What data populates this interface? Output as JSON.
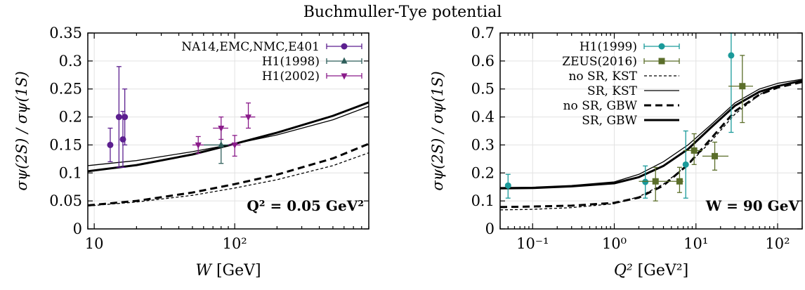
{
  "figure_title": "Buchmuller-Tye potential",
  "chart_data": [
    {
      "type": "line",
      "x_scale": "log",
      "xlim": [
        9,
        900
      ],
      "ylim": [
        0,
        0.35
      ],
      "xlabel_var": "W",
      "xlabel_unit": "[GeV]",
      "ylabel": "σψ(2S) / σψ(1S)",
      "x_ticks": [
        10,
        100
      ],
      "x_tick_labels": [
        "10",
        "10²"
      ],
      "y_ticks": [
        0,
        0.05,
        0.1,
        0.15,
        0.2,
        0.25,
        0.3,
        0.35
      ],
      "y_tick_labels": [
        "0",
        "0.05",
        "0.1",
        "0.15",
        "0.2",
        "0.25",
        "0.3",
        "0.35"
      ],
      "grid": true,
      "legend_position": "top-right",
      "annotation": "Q² = 0.05 GeV²",
      "series": [
        {
          "name": "NA14,EMC,NMC,E401",
          "kind": "points",
          "marker": "circle",
          "color": "#5c1f8f",
          "points": [
            {
              "x": 13,
              "y": 0.15,
              "yerr_lo": 0.12,
              "yerr_hi": 0.18
            },
            {
              "x": 15,
              "y": 0.2,
              "yerr_lo": 0.11,
              "yerr_hi": 0.29
            },
            {
              "x": 16,
              "y": 0.16,
              "yerr_lo": 0.11,
              "yerr_hi": 0.21
            },
            {
              "x": 16.5,
              "y": 0.2,
              "yerr_lo": 0.15,
              "yerr_hi": 0.25
            }
          ]
        },
        {
          "name": "H1(1998)",
          "kind": "points",
          "marker": "triangle-up",
          "color": "#2e5e5a",
          "points": [
            {
              "x": 80,
              "y": 0.15,
              "yerr_lo": 0.117,
              "yerr_hi": 0.183,
              "xerr_lo": 60,
              "xerr_hi": 100
            }
          ]
        },
        {
          "name": "H1(2002)",
          "kind": "points",
          "marker": "triangle-down",
          "color": "#8a1b8a",
          "points": [
            {
              "x": 55,
              "y": 0.15,
              "yerr_lo": 0.135,
              "yerr_hi": 0.165,
              "xerr_lo": 50,
              "xerr_hi": 60
            },
            {
              "x": 80,
              "y": 0.18,
              "yerr_lo": 0.16,
              "yerr_hi": 0.2,
              "xerr_lo": 70,
              "xerr_hi": 90
            },
            {
              "x": 100,
              "y": 0.15,
              "yerr_lo": 0.13,
              "yerr_hi": 0.167,
              "xerr_lo": 90,
              "xerr_hi": 110
            },
            {
              "x": 125,
              "y": 0.2,
              "yerr_lo": 0.18,
              "yerr_hi": 0.225,
              "xerr_lo": 110,
              "xerr_hi": 140
            }
          ]
        },
        {
          "kind": "line",
          "style": "thin-solid",
          "x": [
            9,
            20,
            50,
            100,
            200,
            500,
            900
          ],
          "y": [
            0.113,
            0.122,
            0.138,
            0.152,
            0.168,
            0.195,
            0.219
          ]
        },
        {
          "kind": "line",
          "style": "thick-solid",
          "x": [
            9,
            20,
            50,
            100,
            200,
            500,
            900
          ],
          "y": [
            0.103,
            0.114,
            0.133,
            0.152,
            0.172,
            0.202,
            0.226
          ]
        },
        {
          "kind": "line",
          "style": "thin-dashed",
          "x": [
            9,
            20,
            50,
            100,
            200,
            500,
            900
          ],
          "y": [
            0.041,
            0.048,
            0.06,
            0.073,
            0.088,
            0.113,
            0.136
          ]
        },
        {
          "kind": "line",
          "style": "thick-dashed",
          "x": [
            9,
            20,
            50,
            100,
            200,
            500,
            900
          ],
          "y": [
            0.042,
            0.05,
            0.065,
            0.08,
            0.097,
            0.126,
            0.152
          ]
        }
      ]
    },
    {
      "type": "line",
      "x_scale": "log",
      "xlim": [
        0.04,
        200
      ],
      "ylim": [
        0,
        0.7
      ],
      "xlabel_var": "Q²",
      "xlabel_unit": "[GeV²]",
      "ylabel": "σψ(2S) / σψ(1S)",
      "x_ticks": [
        0.1,
        1,
        10,
        100
      ],
      "x_tick_labels": [
        "10⁻¹",
        "10⁰",
        "10¹",
        "10²"
      ],
      "y_ticks": [
        0,
        0.1,
        0.2,
        0.3,
        0.4,
        0.5,
        0.6,
        0.7
      ],
      "y_tick_labels": [
        "0",
        "0.1",
        "0.2",
        "0.3",
        "0.4",
        "0.5",
        "0.6",
        "0.7"
      ],
      "grid": true,
      "legend_position": "top-left",
      "annotation": "W = 90 GeV",
      "series": [
        {
          "name": "H1(1999)",
          "kind": "points",
          "marker": "circle",
          "color": "#1a9a9a",
          "points": [
            {
              "x": 0.05,
              "y": 0.155,
              "yerr_lo": 0.11,
              "yerr_hi": 0.195
            },
            {
              "x": 2.4,
              "y": 0.168,
              "yerr_lo": 0.11,
              "yerr_hi": 0.225
            },
            {
              "x": 7.5,
              "y": 0.23,
              "yerr_lo": 0.11,
              "yerr_hi": 0.35
            },
            {
              "x": 27,
              "y": 0.62,
              "yerr_lo": 0.345,
              "yerr_hi": 0.7
            }
          ]
        },
        {
          "name": "ZEUS(2016)",
          "kind": "points",
          "marker": "square",
          "color": "#5b6e2a",
          "points": [
            {
              "x": 3.2,
              "y": 0.17,
              "yerr_lo": 0.1,
              "yerr_hi": 0.22,
              "xerr_lo": 2,
              "xerr_hi": 5
            },
            {
              "x": 6.3,
              "y": 0.17,
              "yerr_lo": 0.13,
              "yerr_hi": 0.22,
              "xerr_lo": 5,
              "xerr_hi": 7
            },
            {
              "x": 9.5,
              "y": 0.28,
              "yerr_lo": 0.23,
              "yerr_hi": 0.34,
              "xerr_lo": 7,
              "xerr_hi": 12
            },
            {
              "x": 17,
              "y": 0.26,
              "yerr_lo": 0.21,
              "yerr_hi": 0.31,
              "xerr_lo": 12,
              "xerr_hi": 25
            },
            {
              "x": 37,
              "y": 0.51,
              "yerr_lo": 0.38,
              "yerr_hi": 0.62,
              "xerr_lo": 25,
              "xerr_hi": 50
            }
          ]
        },
        {
          "name": "no SR, KST",
          "kind": "line",
          "style": "thin-dashed",
          "x": [
            0.04,
            0.1,
            0.3,
            1,
            2,
            4,
            8,
            15,
            30,
            60,
            100,
            200
          ],
          "y": [
            0.068,
            0.07,
            0.076,
            0.09,
            0.115,
            0.16,
            0.23,
            0.31,
            0.41,
            0.48,
            0.51,
            0.53
          ]
        },
        {
          "name": "SR, KST",
          "kind": "line",
          "style": "thin-solid",
          "x": [
            0.04,
            0.1,
            0.3,
            1,
            2,
            4,
            8,
            15,
            30,
            60,
            100,
            200
          ],
          "y": [
            0.148,
            0.149,
            0.155,
            0.168,
            0.195,
            0.24,
            0.3,
            0.37,
            0.45,
            0.5,
            0.52,
            0.535
          ]
        },
        {
          "name": "no SR, GBW",
          "kind": "line",
          "style": "thick-dashed",
          "x": [
            0.04,
            0.1,
            0.3,
            1,
            2,
            4,
            8,
            15,
            30,
            60,
            100,
            200
          ],
          "y": [
            0.078,
            0.08,
            0.083,
            0.093,
            0.112,
            0.155,
            0.23,
            0.32,
            0.42,
            0.48,
            0.505,
            0.525
          ]
        },
        {
          "name": "SR, GBW",
          "kind": "line",
          "style": "thick-solid",
          "x": [
            0.04,
            0.1,
            0.3,
            1,
            2,
            4,
            8,
            15,
            30,
            60,
            100,
            200
          ],
          "y": [
            0.145,
            0.146,
            0.152,
            0.163,
            0.185,
            0.225,
            0.285,
            0.36,
            0.44,
            0.49,
            0.51,
            0.53
          ]
        }
      ]
    }
  ]
}
